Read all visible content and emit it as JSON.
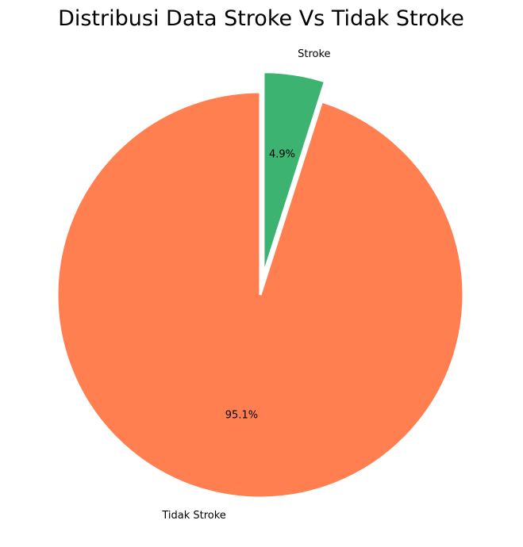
{
  "chart_data": {
    "type": "pie",
    "title": "Distribusi Data Stroke Vs Tidak Stroke",
    "start_angle_deg": 90,
    "counterclock": false,
    "slices": [
      {
        "label": "Stroke",
        "value": 4.9,
        "pct_label": "4.9%",
        "color": "#3cb371",
        "explode": 0.1
      },
      {
        "label": "Tidak Stroke",
        "value": 95.1,
        "pct_label": "95.1%",
        "color": "#ff7f50",
        "explode": 0
      }
    ]
  }
}
